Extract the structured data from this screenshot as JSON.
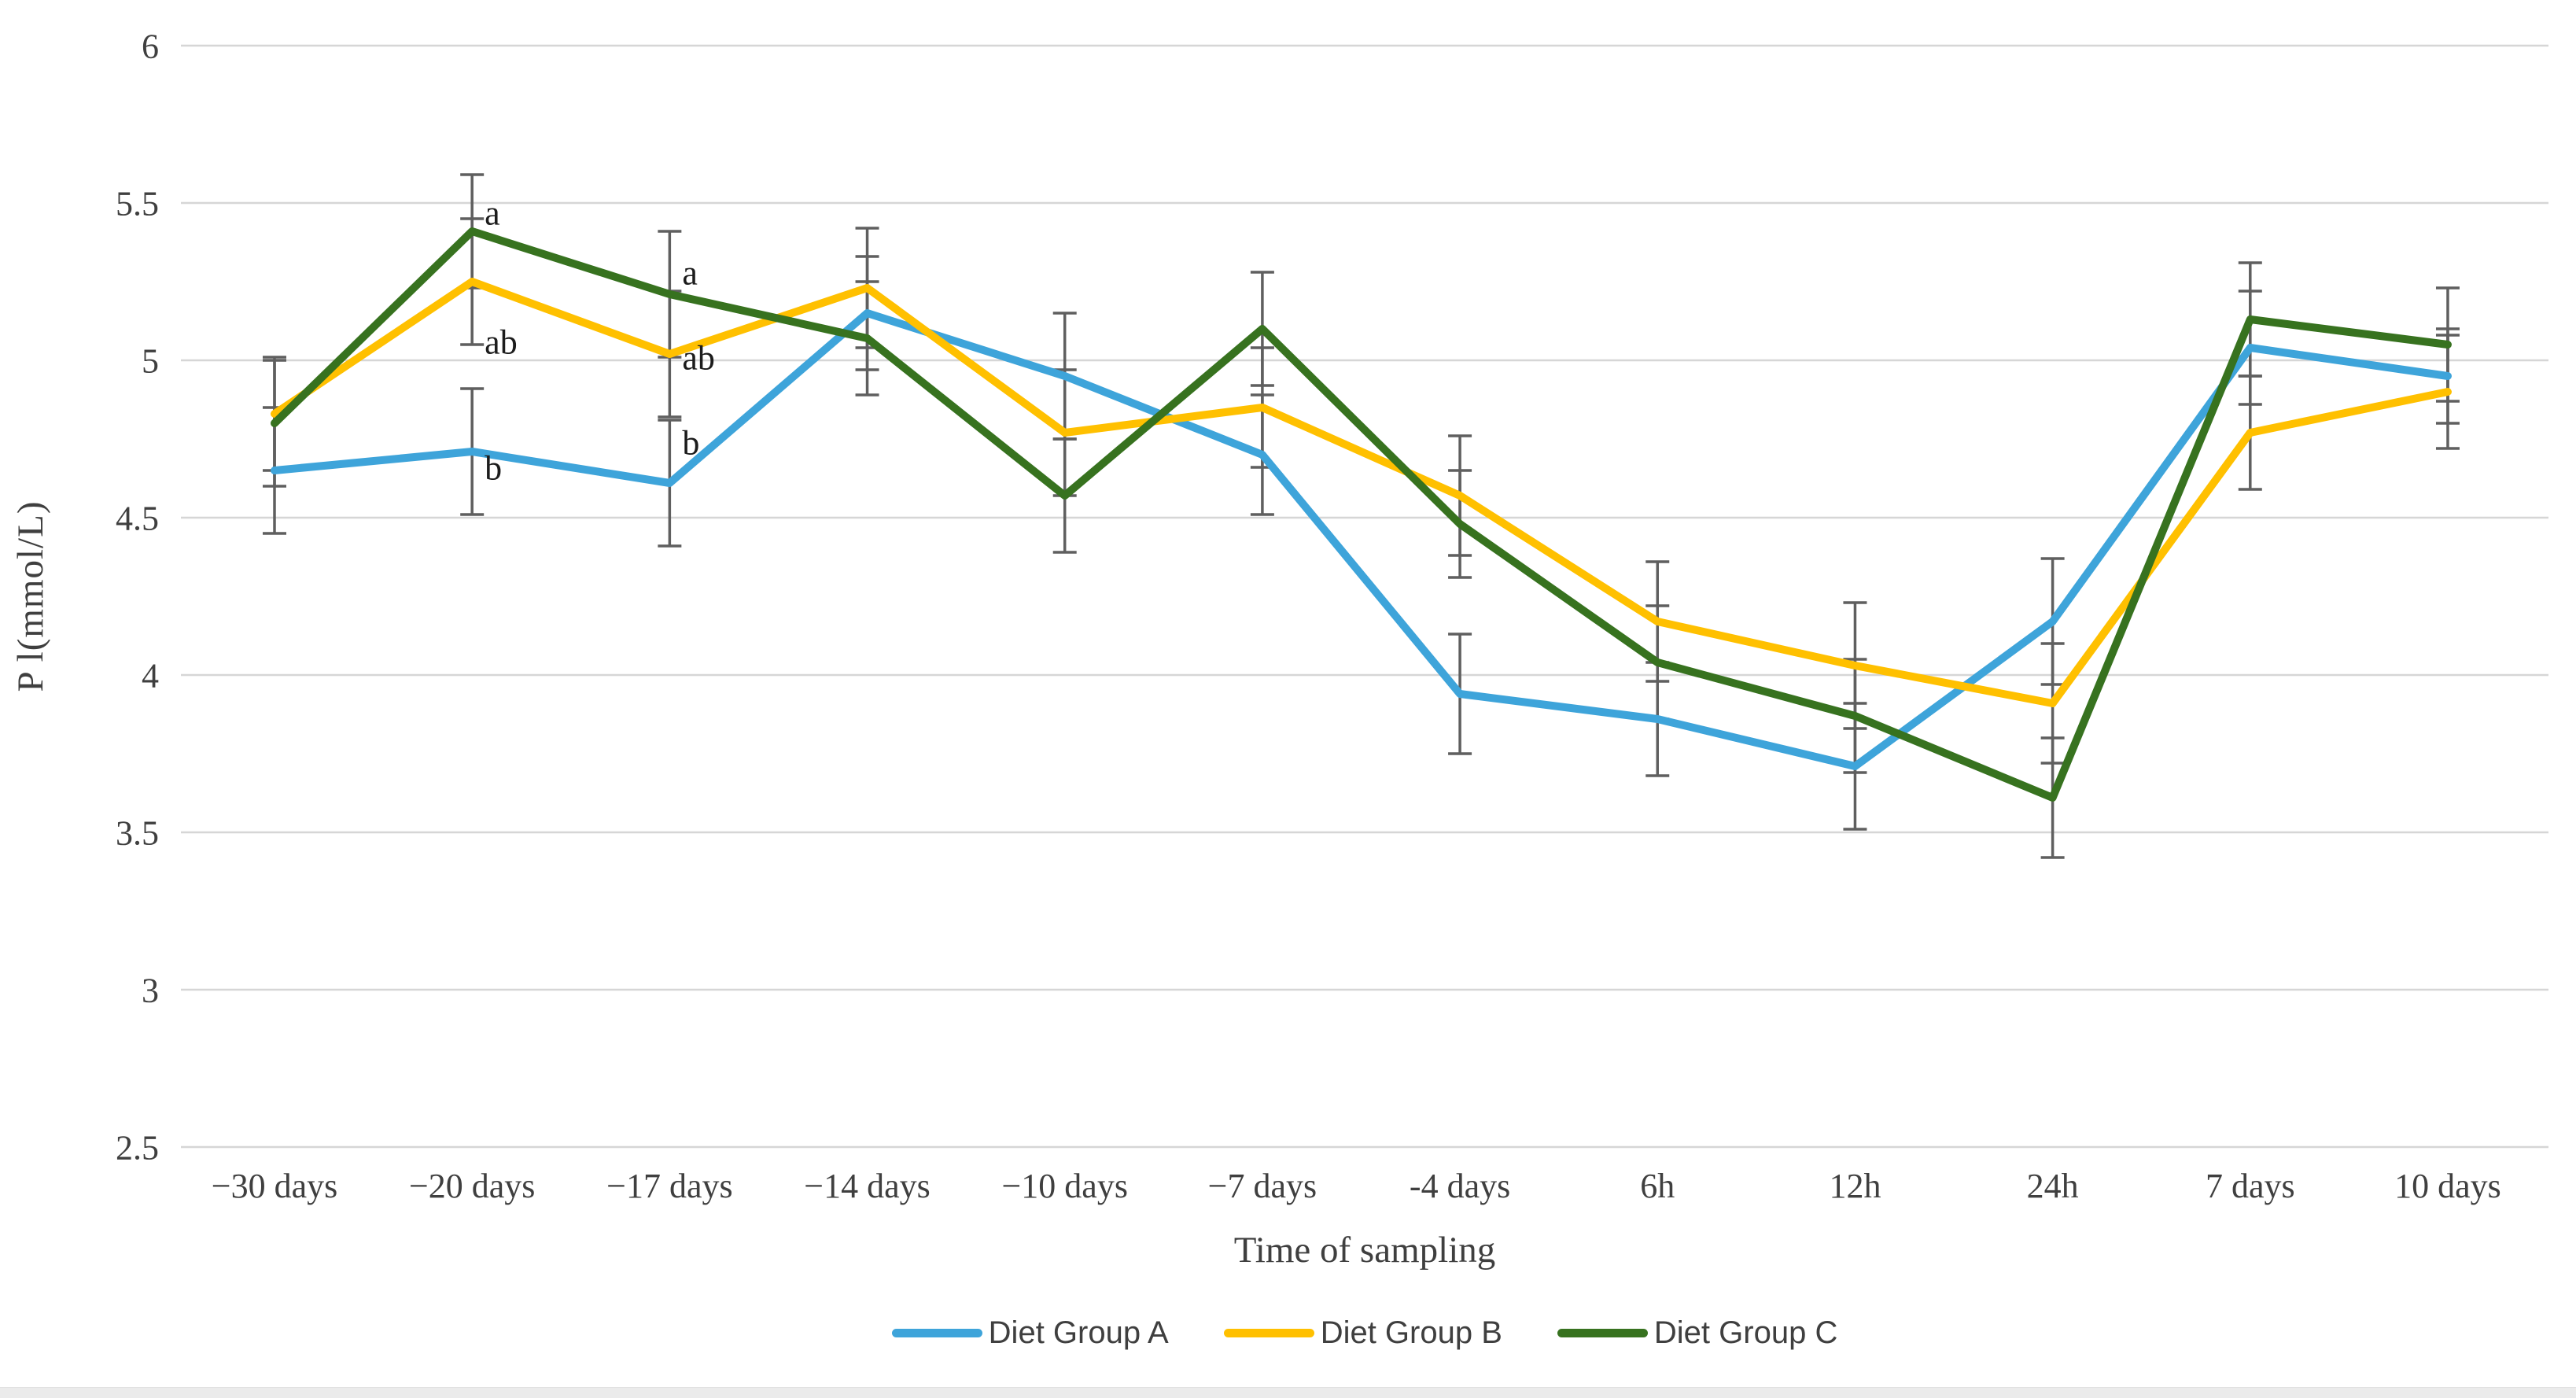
{
  "chart_data": {
    "type": "line",
    "title": "",
    "xlabel": "Time of sampling",
    "ylabel": "P l(mmol/L)",
    "ylim": [
      2.5,
      6
    ],
    "y_ticks": [
      6,
      5.5,
      5,
      4.5,
      4,
      3.5,
      3,
      2.5
    ],
    "grid": "horizontal-only",
    "legend_position": "bottom-center",
    "gridline_color": "#D6D6D6",
    "error_bar_color": "#5F5F5F",
    "text_color": "#3F3F3F",
    "annotation_color": "#1C1C1C",
    "categories": [
      "−30 days",
      "−20 days",
      "−17 days",
      "−14 days",
      "−10 days",
      "−7 days",
      "-4 days",
      "6h",
      "12h",
      "24h",
      "7 days",
      "10 days"
    ],
    "series": [
      {
        "name": "Diet Group A",
        "color": "#3EA4DA",
        "values": [
          4.65,
          4.71,
          4.61,
          5.15,
          4.95,
          4.7,
          3.94,
          3.86,
          3.71,
          4.17,
          5.04,
          4.95
        ],
        "errors": [
          0.2,
          0.2,
          0.2,
          0.18,
          0.2,
          0.19,
          0.19,
          0.18,
          0.2,
          0.2,
          0.18,
          0.15
        ]
      },
      {
        "name": "Diet Group B",
        "color": "#FFC000",
        "values": [
          4.83,
          5.25,
          5.02,
          5.23,
          4.77,
          4.85,
          4.57,
          4.17,
          4.03,
          3.91,
          4.77,
          4.9
        ],
        "errors": [
          0.18,
          0.2,
          0.2,
          0.19,
          0.2,
          0.19,
          0.19,
          0.19,
          0.2,
          0.19,
          0.18,
          0.18
        ]
      },
      {
        "name": "Diet Group C",
        "color": "#37721F",
        "values": [
          4.8,
          5.41,
          5.21,
          5.07,
          4.57,
          5.1,
          4.48,
          4.04,
          3.87,
          3.61,
          5.13,
          5.05
        ],
        "errors": [
          0.2,
          0.18,
          0.2,
          0.18,
          0.18,
          0.18,
          0.17,
          0.18,
          0.18,
          0.19,
          0.18,
          0.18
        ]
      }
    ],
    "annotations": [
      {
        "text": "a",
        "category_index": 1,
        "value": 5.47
      },
      {
        "text": "ab",
        "category_index": 1,
        "value": 5.06
      },
      {
        "text": "b",
        "category_index": 1,
        "value": 4.66
      },
      {
        "text": "a",
        "category_index": 2,
        "value": 5.28
      },
      {
        "text": "ab",
        "category_index": 2,
        "value": 5.01
      },
      {
        "text": "b",
        "category_index": 2,
        "value": 4.74
      }
    ]
  }
}
